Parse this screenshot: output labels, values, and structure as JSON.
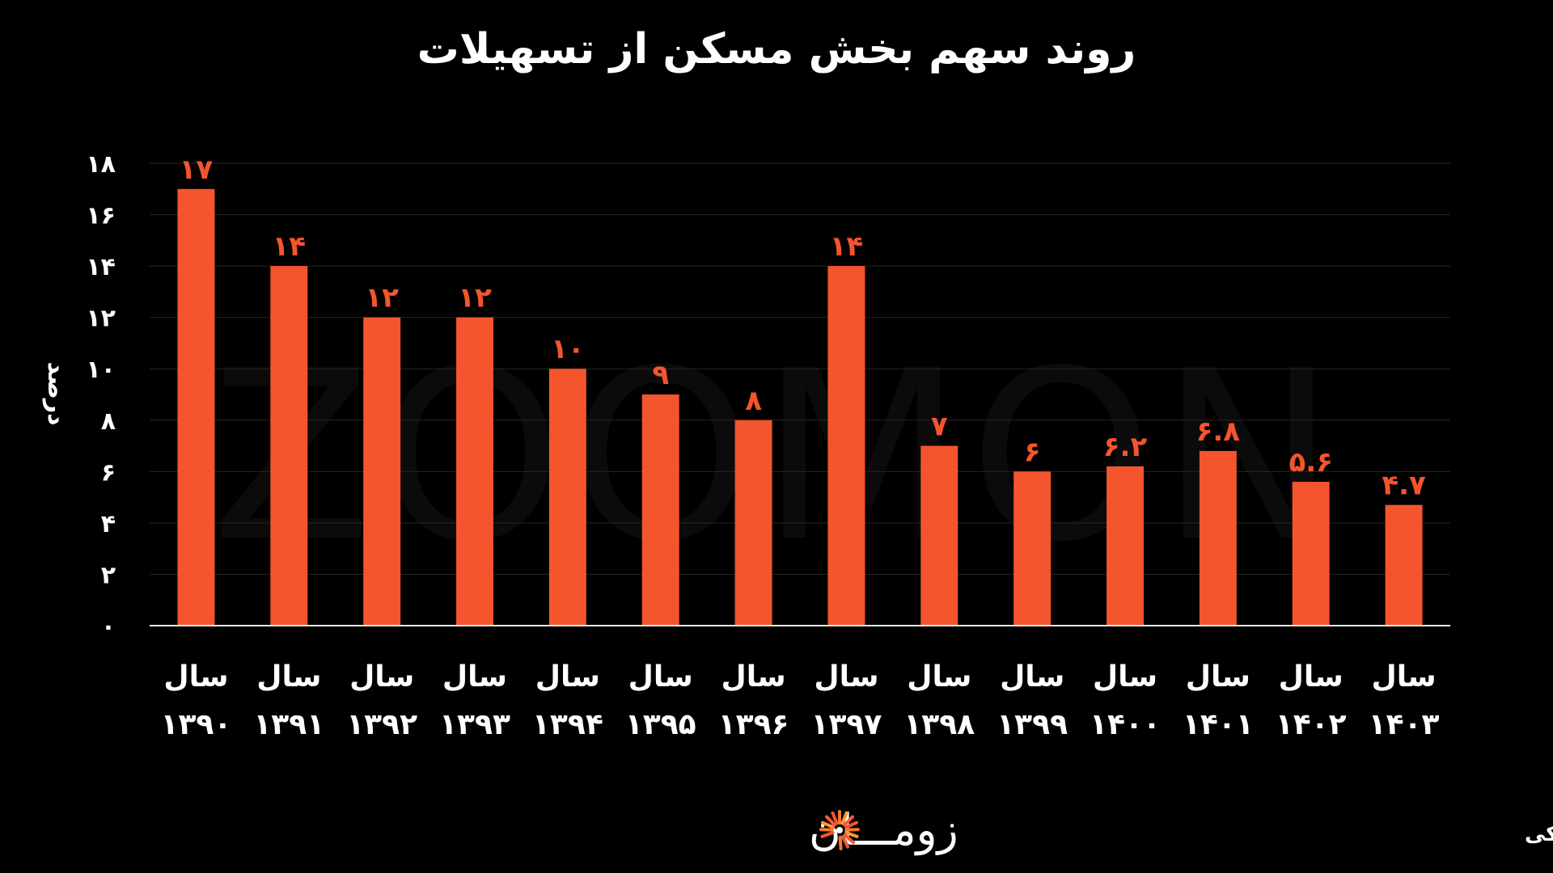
{
  "chart_data": {
    "type": "bar",
    "title": "روند سهم بخش مسکن از تسهیلات",
    "ylabel": "درصد",
    "ylim": [
      0,
      18
    ],
    "yticks": [
      "۰",
      "۲",
      "۴",
      "۶",
      "۸",
      "۱۰",
      "۱۲",
      "۱۴",
      "۱۶",
      "۱۸"
    ],
    "grid": true,
    "categories": [
      {
        "prefix": "سال",
        "year": "۱۳۹۰"
      },
      {
        "prefix": "سال",
        "year": "۱۳۹۱"
      },
      {
        "prefix": "سال",
        "year": "۱۳۹۲"
      },
      {
        "prefix": "سال",
        "year": "۱۳۹۳"
      },
      {
        "prefix": "سال",
        "year": "۱۳۹۴"
      },
      {
        "prefix": "سال",
        "year": "۱۳۹۵"
      },
      {
        "prefix": "سال",
        "year": "۱۳۹۶"
      },
      {
        "prefix": "سال",
        "year": "۱۳۹۷"
      },
      {
        "prefix": "سال",
        "year": "۱۳۹۸"
      },
      {
        "prefix": "سال",
        "year": "۱۳۹۹"
      },
      {
        "prefix": "سال",
        "year": "۱۴۰۰"
      },
      {
        "prefix": "سال",
        "year": "۱۴۰۱"
      },
      {
        "prefix": "سال",
        "year": "۱۴۰۲"
      },
      {
        "prefix": "سال",
        "year": "۱۴۰۳"
      }
    ],
    "values": [
      17,
      14,
      12,
      12,
      10,
      9,
      8,
      14,
      7,
      6,
      6.2,
      6.8,
      5.6,
      4.7
    ],
    "data_labels": [
      "۱۷",
      "۱۴",
      "۱۲",
      "۱۲",
      "۱۰",
      "۹",
      "۸",
      "۱۴",
      "۷",
      "۶",
      "۶.۲",
      "۶.۸",
      "۵.۶",
      "۴.۷"
    ],
    "bar_color": "#f4552c",
    "label_color": "#f4552c",
    "background": "#000000",
    "watermark": "ZOOMON"
  },
  "footer": {
    "source": "منبع: پژوهشکده پولی و بانکی",
    "brand": "زومـــان"
  }
}
